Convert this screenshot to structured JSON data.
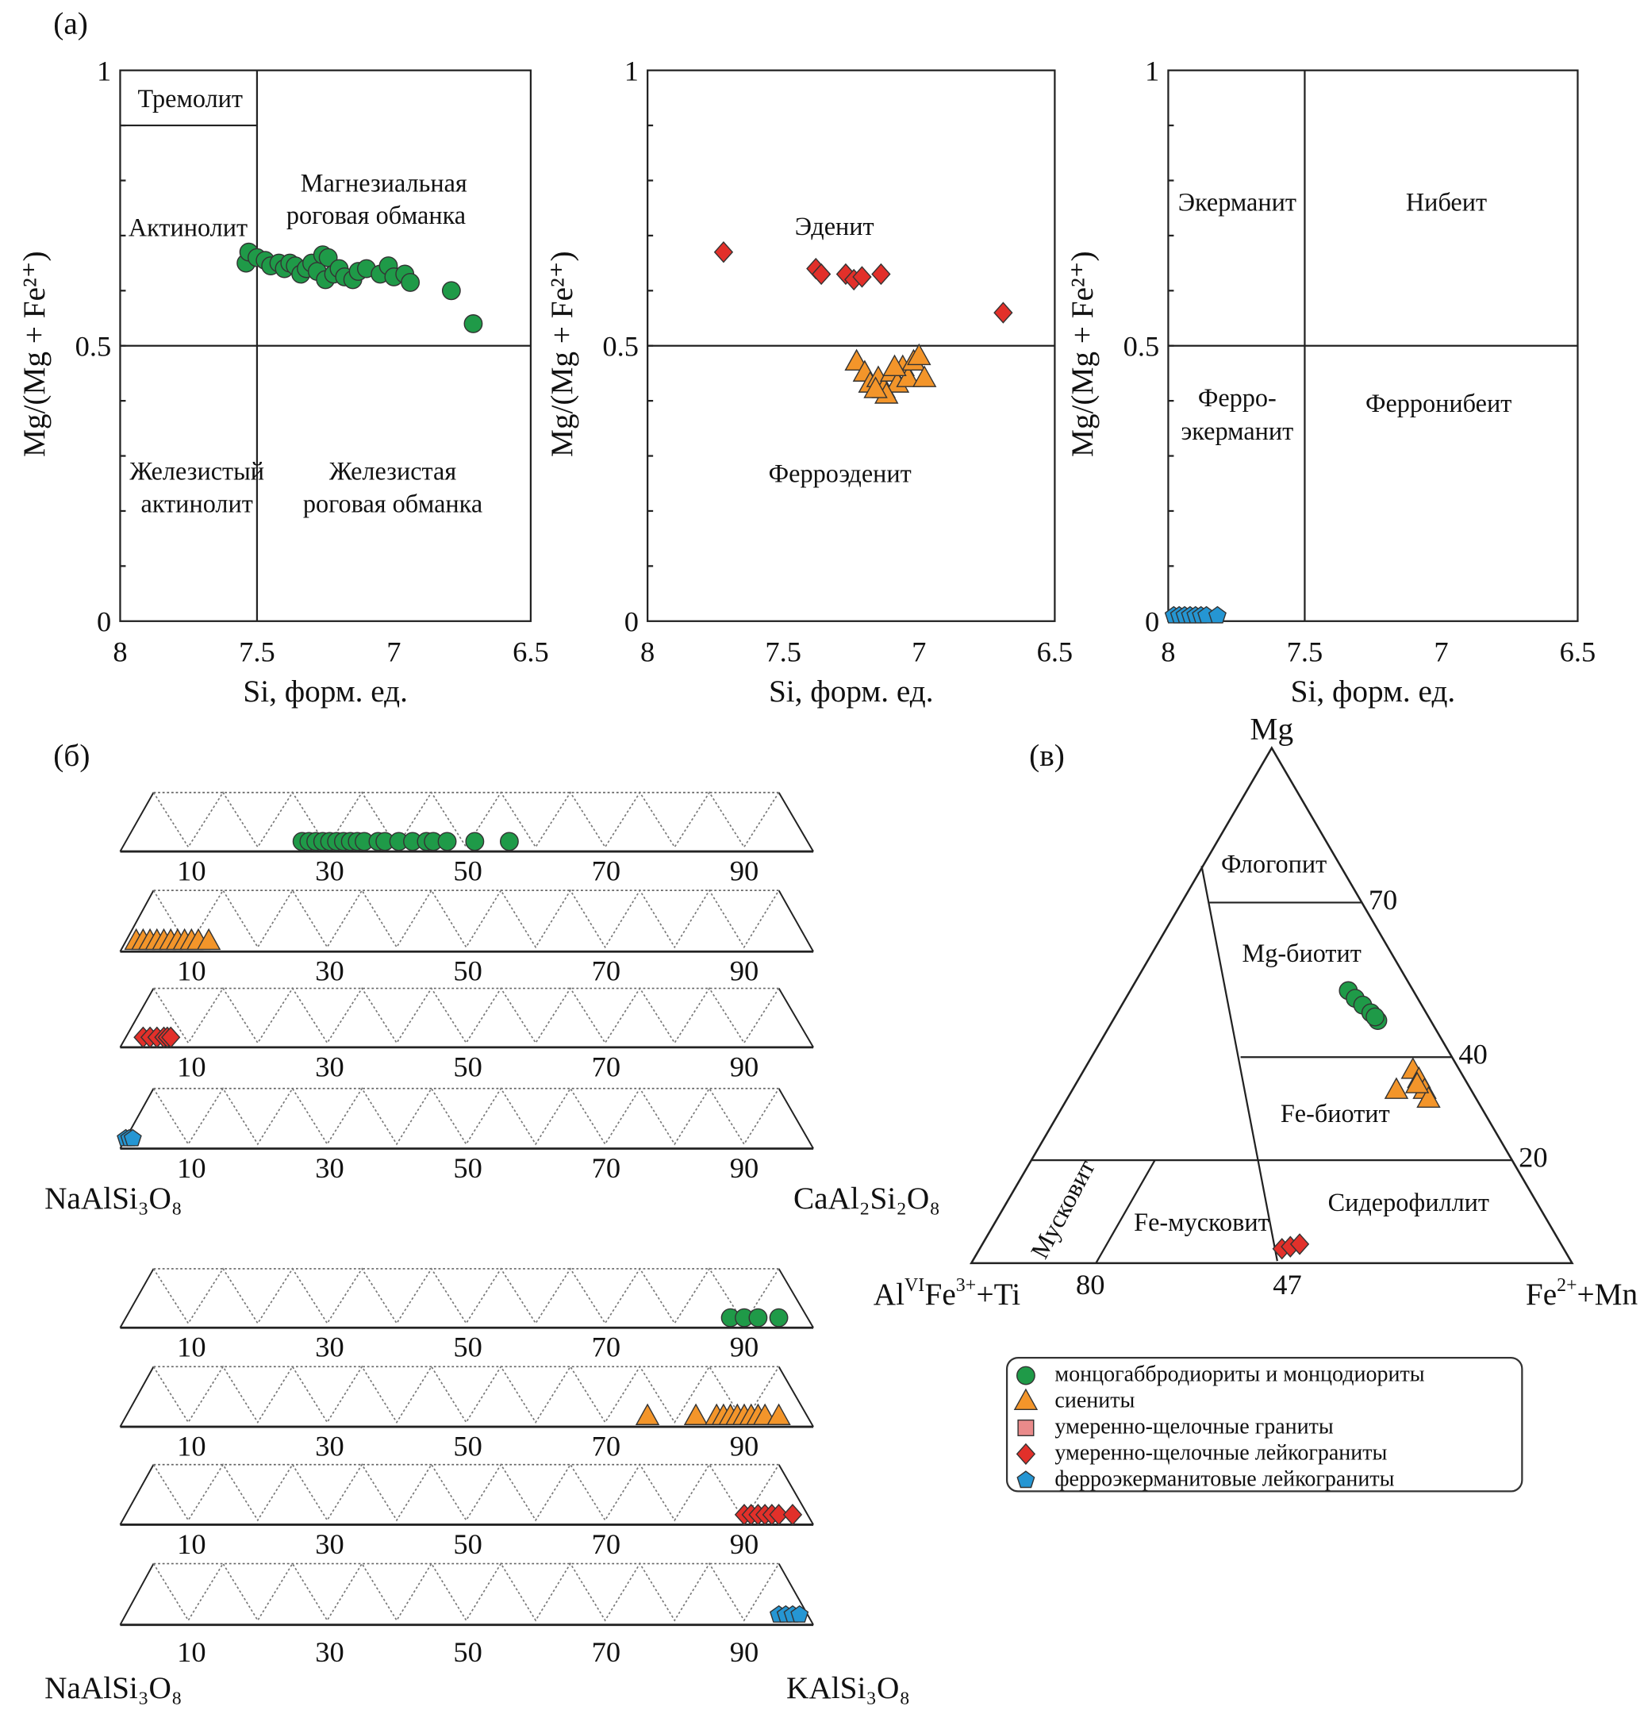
{
  "panel_labels": {
    "a": "(а)",
    "b": "(б)",
    "c": "(в)"
  },
  "colors": {
    "montso": "#1f9a48",
    "syenite": "#f3952a",
    "granite": "#e98a8a",
    "leucogranite": "#e2302a",
    "ferroeckermannite": "#2596d3"
  },
  "legend": {
    "items": [
      {
        "label": "монцогаббродиориты и монцодиориты",
        "symbol": "circle",
        "color_key": "montso"
      },
      {
        "label": "сиениты",
        "symbol": "triangle",
        "color_key": "syenite"
      },
      {
        "label": "умеренно-щелочные граниты",
        "symbol": "square",
        "color_key": "granite"
      },
      {
        "label": "умеренно-щелочные лейкограниты",
        "symbol": "diamond",
        "color_key": "leucogranite"
      },
      {
        "label": "ферроэкерманитовые лейкограниты",
        "symbol": "pentagon",
        "color_key": "ferroeckermannite"
      }
    ]
  },
  "chart_data": [
    {
      "type": "scatter",
      "xlabel": "Si, форм. ед.",
      "ylabel": "Mg/(Mg + Fe²⁺)",
      "xlim": [
        8,
        6.5
      ],
      "ylim": [
        0,
        1
      ],
      "xticks": [
        "8",
        "7.5",
        "7",
        "6.5"
      ],
      "yticks": [
        "0",
        "0.5",
        "1"
      ],
      "fields": [
        "Тремолит",
        "Магнезиальная",
        "роговая обманка",
        "Актинолит",
        "Железистый",
        "актинолит",
        "Железистая",
        "роговая обманка"
      ],
      "series": [
        {
          "name": "монцогаббродиориты и монцодиориты",
          "symbol": "circle",
          "color_key": "montso",
          "points": [
            [
              7.54,
              0.65
            ],
            [
              7.53,
              0.67
            ],
            [
              7.5,
              0.66
            ],
            [
              7.47,
              0.655
            ],
            [
              7.45,
              0.645
            ],
            [
              7.42,
              0.65
            ],
            [
              7.4,
              0.64
            ],
            [
              7.38,
              0.65
            ],
            [
              7.36,
              0.645
            ],
            [
              7.34,
              0.63
            ],
            [
              7.32,
              0.64
            ],
            [
              7.3,
              0.65
            ],
            [
              7.28,
              0.635
            ],
            [
              7.26,
              0.665
            ],
            [
              7.25,
              0.62
            ],
            [
              7.24,
              0.66
            ],
            [
              7.22,
              0.63
            ],
            [
              7.2,
              0.64
            ],
            [
              7.18,
              0.625
            ],
            [
              7.15,
              0.62
            ],
            [
              7.13,
              0.635
            ],
            [
              7.1,
              0.64
            ],
            [
              7.05,
              0.63
            ],
            [
              7.02,
              0.645
            ],
            [
              7.0,
              0.625
            ],
            [
              6.96,
              0.63
            ],
            [
              6.94,
              0.615
            ],
            [
              6.79,
              0.6
            ],
            [
              6.71,
              0.54
            ]
          ]
        }
      ]
    },
    {
      "type": "scatter",
      "xlabel": "Si, форм. ед.",
      "ylabel": "Mg/(Mg + Fe²⁺)",
      "xlim": [
        8,
        6.5
      ],
      "ylim": [
        0,
        1
      ],
      "xticks": [
        "8",
        "7.5",
        "7",
        "6.5"
      ],
      "yticks": [
        "0",
        "0.5",
        "1"
      ],
      "fields": [
        "Эденит",
        "Ферроэденит"
      ],
      "series": [
        {
          "name": "умеренно-щелочные лейкограниты",
          "symbol": "diamond",
          "color_key": "leucogranite",
          "points": [
            [
              7.72,
              0.67
            ],
            [
              7.38,
              0.64
            ],
            [
              7.36,
              0.63
            ],
            [
              7.27,
              0.63
            ],
            [
              7.24,
              0.62
            ],
            [
              7.21,
              0.625
            ],
            [
              7.14,
              0.63
            ],
            [
              6.69,
              0.56
            ]
          ]
        },
        {
          "name": "сиениты",
          "symbol": "triangle",
          "color_key": "syenite",
          "points": [
            [
              7.23,
              0.47
            ],
            [
              7.2,
              0.45
            ],
            [
              7.18,
              0.43
            ],
            [
              7.15,
              0.44
            ],
            [
              7.13,
              0.42
            ],
            [
              7.1,
              0.45
            ],
            [
              7.08,
              0.43
            ],
            [
              7.06,
              0.46
            ],
            [
              7.04,
              0.44
            ],
            [
              7.02,
              0.47
            ],
            [
              7.0,
              0.48
            ],
            [
              6.98,
              0.44
            ],
            [
              7.12,
              0.41
            ],
            [
              7.16,
              0.42
            ],
            [
              7.09,
              0.46
            ]
          ]
        }
      ]
    },
    {
      "type": "scatter",
      "xlabel": "Si, форм. ед.",
      "ylabel": "Mg/(Mg + Fe²⁺)",
      "xlim": [
        8,
        6.5
      ],
      "ylim": [
        0,
        1
      ],
      "xticks": [
        "8",
        "7.5",
        "7",
        "6.5"
      ],
      "yticks": [
        "0",
        "0.5",
        "1"
      ],
      "fields": [
        "Экерманит",
        "Нибеит",
        "Ферро-",
        "экерманит",
        "Ферронибеит"
      ],
      "series": [
        {
          "name": "ферроэкерманитовые лейкограниты",
          "symbol": "pentagon",
          "color_key": "ferroeckermannite",
          "points": [
            [
              7.98,
              0.01
            ],
            [
              7.96,
              0.01
            ],
            [
              7.94,
              0.01
            ],
            [
              7.92,
              0.01
            ],
            [
              7.9,
              0.01
            ],
            [
              7.88,
              0.01
            ],
            [
              7.86,
              0.01
            ],
            [
              7.82,
              0.01
            ]
          ]
        }
      ]
    },
    {
      "type": "strip",
      "left_label": "NaAlSi₃O₈",
      "right_label": "CaAl₂Si₂O₈",
      "xlim": [
        0,
        100
      ],
      "xticks": [
        "10",
        "30",
        "50",
        "70",
        "90"
      ],
      "series": [
        {
          "symbol": "circle",
          "color_key": "montso",
          "values": [
            26,
            27,
            28,
            29,
            30,
            31,
            32,
            33,
            34,
            35,
            37,
            38,
            40,
            42,
            44,
            45,
            47,
            51,
            56
          ]
        },
        {
          "symbol": "triangle",
          "color_key": "syenite",
          "values": [
            2,
            3,
            4,
            5,
            6,
            7,
            8,
            9,
            10,
            11,
            12.5
          ]
        },
        {
          "symbol": "diamond",
          "color_key": "leucogranite",
          "values": [
            3,
            4,
            5,
            6,
            6.5,
            7
          ]
        },
        {
          "symbol": "pentagon",
          "color_key": "ferroeckermannite",
          "values": [
            0.5,
            1,
            1.5
          ]
        }
      ]
    },
    {
      "type": "strip",
      "left_label": "NaAlSi₃O₈",
      "right_label": "KAlSi₃O₈",
      "xlim": [
        0,
        100
      ],
      "xticks": [
        "10",
        "30",
        "50",
        "70",
        "90"
      ],
      "series": [
        {
          "symbol": "circle",
          "color_key": "montso",
          "values": [
            88,
            90,
            92,
            95
          ]
        },
        {
          "symbol": "triangle",
          "color_key": "syenite",
          "values": [
            76,
            83,
            86,
            87,
            88,
            89,
            90,
            91,
            92,
            93,
            95
          ]
        },
        {
          "symbol": "diamond",
          "color_key": "leucogranite",
          "values": [
            90,
            91,
            92,
            93,
            94,
            95,
            97
          ]
        },
        {
          "symbol": "pentagon",
          "color_key": "ferroeckermannite",
          "values": [
            95,
            96,
            97,
            98
          ]
        }
      ]
    },
    {
      "type": "ternary",
      "apex_top": "Mg",
      "apex_left": {
        "main": "Al",
        "sup1": "VI",
        "mid": "Fe",
        "sup2": "3+",
        "end": "+Ti"
      },
      "apex_right": {
        "main": "Fe",
        "sup": "2+",
        "end": "+Mn"
      },
      "edge_ticks": [
        "70",
        "40",
        "20"
      ],
      "base_ticks": [
        "80",
        "47"
      ],
      "fields": [
        "Флогопит",
        "Mg-биотит",
        "Fe-биотит",
        "Сидерофиллит",
        "Fe-мусковит",
        "Мусковит"
      ],
      "series": [
        {
          "symbol": "circle",
          "color_key": "montso",
          "points_mg_fe": [
            [
              52.9,
              36.3
            ],
            [
              51.4,
              38.2
            ],
            [
              50.1,
              40.1
            ],
            [
              48.6,
              42.2
            ],
            [
              47.1,
              44.1
            ],
            [
              47.8,
              43.3
            ]
          ]
        },
        {
          "symbol": "triangle",
          "color_key": "syenite",
          "points_mg_fe": [
            [
              33.5,
              54.0
            ],
            [
              37.4,
              54.8
            ],
            [
              35.6,
              56.7
            ],
            [
              33.5,
              58.7
            ],
            [
              31.8,
              60.2
            ],
            [
              34.6,
              56.9
            ]
          ]
        },
        {
          "symbol": "diamond",
          "color_key": "leucogranite",
          "points_mg_fe": [
            [
              2.8,
              50.3
            ],
            [
              3.2,
              51.5
            ],
            [
              3.7,
              52.8
            ]
          ]
        }
      ]
    }
  ]
}
